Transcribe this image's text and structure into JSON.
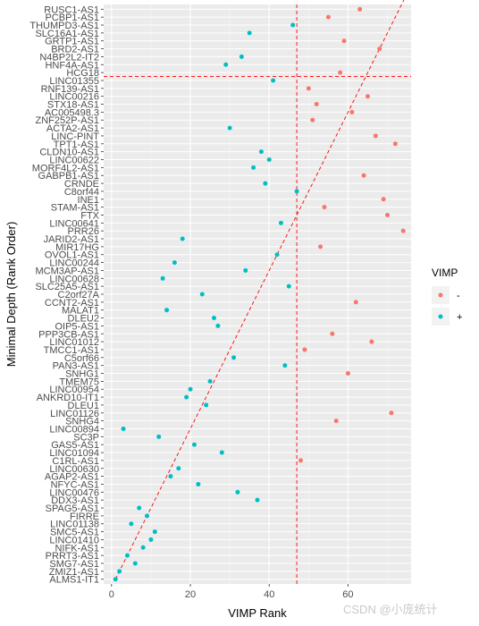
{
  "chart_data": {
    "type": "scatter",
    "xlabel": "VIMP Rank",
    "ylabel": "Minimal Depth (Rank Order)",
    "xlim": [
      -2,
      76
    ],
    "xticks": [
      0,
      20,
      40,
      60
    ],
    "vline_x": 47,
    "hline_rank": 64,
    "diagonal": [
      [
        1,
        1
      ],
      [
        76,
        76
      ]
    ],
    "grid": true,
    "legend": {
      "title": "VIMP",
      "placement": "right",
      "entries": [
        {
          "label": "-",
          "color": "#F8766D"
        },
        {
          "label": "+",
          "color": "#00BFC4"
        }
      ]
    },
    "categories": [
      "ALMS1-IT1",
      "ZMIZ1-AS1",
      "SMG7-AS1",
      "PRRT3-AS1",
      "NIFK-AS1",
      "LINC01410",
      "SMC5-AS1",
      "LINC01138",
      "FIRRE",
      "SPAG5-AS1",
      "DDX3-AS1",
      "LINC00476",
      "NFYC-AS1",
      "AGAP2-AS1",
      "LINC00630",
      "C1RL-AS1",
      "LINC01094",
      "GAS5-AS1",
      "SC3P",
      "LINC00894",
      "SNHG4",
      "LINC01126",
      "DLEU1",
      "ANKRD10-IT1",
      "LINC00954",
      "TMEM75",
      "SNHG1",
      "PAN3-AS1",
      "C5orf66",
      "TMCC1-AS1",
      "LINC01012",
      "PPP3CB-AS1",
      "OIP5-AS1",
      "DLEU2",
      "MALAT1",
      "CCNT2-AS1",
      "C2orf27A",
      "SLC25A5-AS1",
      "LINC00628",
      "MCM3AP-AS1",
      "LINC00244",
      "OVOL1-AS1",
      "MIR17HG",
      "JARID2-AS1",
      "PRR26",
      "LINC00641",
      "FTX",
      "STAM-AS1",
      "INE1",
      "C8orf44",
      "CRNDE",
      "GABPB1-AS1",
      "MORF4L2-AS1",
      "LINC00622",
      "CLDN10-AS1",
      "TPT1-AS1",
      "LINC-PINT",
      "ACTA2-AS1",
      "ZNF252P-AS1",
      "AC005498.3",
      "STX18-AS1",
      "LINC00216",
      "RNF139-AS1",
      "LINC01355",
      "HCG18",
      "HNF4A-AS1",
      "N4BP2L2-IT2",
      "BRD2-AS1",
      "GRTP1-AS1",
      "SLC16A1-AS1",
      "THUMPD3-AS1",
      "PCBP1-AS1",
      "RUSC1-AS1"
    ],
    "series": [
      {
        "name": "-",
        "color": "#F8766D",
        "points": [
          [
            "RUSC1-AS1",
            63
          ],
          [
            "PCBP1-AS1",
            55
          ],
          [
            "GRTP1-AS1",
            59
          ],
          [
            "BRD2-AS1",
            68
          ],
          [
            "HCG18",
            58
          ],
          [
            "RNF139-AS1",
            50
          ],
          [
            "LINC00216",
            65
          ],
          [
            "STX18-AS1",
            52
          ],
          [
            "AC005498.3",
            61
          ],
          [
            "ZNF252P-AS1",
            51
          ],
          [
            "LINC-PINT",
            67
          ],
          [
            "TPT1-AS1",
            72
          ],
          [
            "GABPB1-AS1",
            64
          ],
          [
            "INE1",
            69
          ],
          [
            "STAM-AS1",
            54
          ],
          [
            "FTX",
            70
          ],
          [
            "PRR26",
            74
          ],
          [
            "MIR17HG",
            53
          ],
          [
            "CCNT2-AS1",
            62
          ],
          [
            "PPP3CB-AS1",
            56
          ],
          [
            "LINC01012",
            66
          ],
          [
            "TMCC1-AS1",
            49
          ],
          [
            "SNHG1",
            60
          ],
          [
            "LINC01126",
            71
          ],
          [
            "SNHG4",
            57
          ],
          [
            "C1RL-AS1",
            48
          ]
        ]
      },
      {
        "name": "+",
        "color": "#00BFC4",
        "points": [
          [
            "THUMPD3-AS1",
            46
          ],
          [
            "SLC16A1-AS1",
            35
          ],
          [
            "N4BP2L2-IT2",
            33
          ],
          [
            "HNF4A-AS1",
            29
          ],
          [
            "LINC01355",
            41
          ],
          [
            "ACTA2-AS1",
            30
          ],
          [
            "CLDN10-AS1",
            38
          ],
          [
            "LINC00622",
            40
          ],
          [
            "MORF4L2-AS1",
            36
          ],
          [
            "CRNDE",
            39
          ],
          [
            "C8orf44",
            47
          ],
          [
            "LINC00641",
            43
          ],
          [
            "JARID2-AS1",
            18
          ],
          [
            "OVOL1-AS1",
            42
          ],
          [
            "LINC00244",
            16
          ],
          [
            "MCM3AP-AS1",
            34
          ],
          [
            "LINC00628",
            13
          ],
          [
            "SLC25A5-AS1",
            45
          ],
          [
            "C2orf27A",
            23
          ],
          [
            "MALAT1",
            14
          ],
          [
            "DLEU2",
            26
          ],
          [
            "OIP5-AS1",
            27
          ],
          [
            "C5orf66",
            31
          ],
          [
            "PAN3-AS1",
            44
          ],
          [
            "TMEM75",
            25
          ],
          [
            "LINC00954",
            20
          ],
          [
            "ANKRD10-IT1",
            19
          ],
          [
            "DLEU1",
            24
          ],
          [
            "LINC00894",
            3
          ],
          [
            "SC3P",
            12
          ],
          [
            "GAS5-AS1",
            21
          ],
          [
            "LINC01094",
            28
          ],
          [
            "LINC00630",
            17
          ],
          [
            "AGAP2-AS1",
            15
          ],
          [
            "NFYC-AS1",
            22
          ],
          [
            "LINC00476",
            32
          ],
          [
            "DDX3-AS1",
            37
          ],
          [
            "SPAG5-AS1",
            7
          ],
          [
            "FIRRE",
            9
          ],
          [
            "LINC01138",
            5
          ],
          [
            "SMC5-AS1",
            11
          ],
          [
            "LINC01410",
            10
          ],
          [
            "NIFK-AS1",
            8
          ],
          [
            "PRRT3-AS1",
            4
          ],
          [
            "SMG7-AS1",
            6
          ],
          [
            "ZMIZ1-AS1",
            2
          ],
          [
            "ALMS1-IT1",
            1
          ]
        ]
      }
    ]
  },
  "watermark": "CSDN @小庞统计"
}
